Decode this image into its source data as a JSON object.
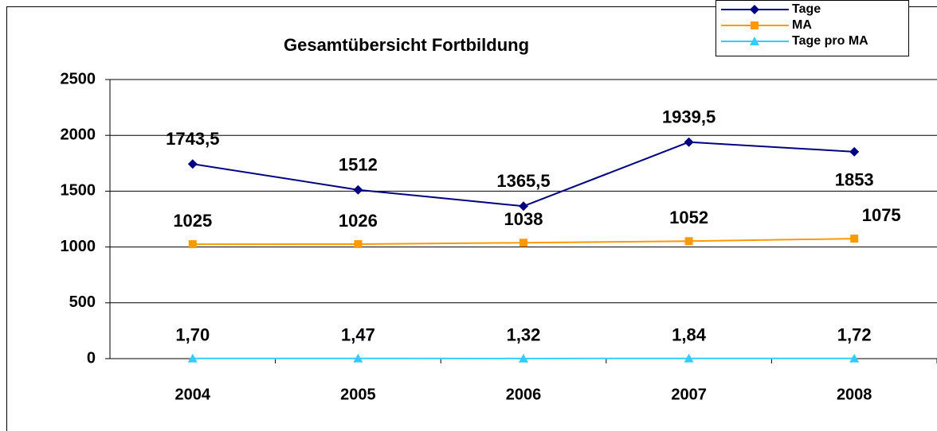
{
  "chart_data": {
    "type": "line",
    "title": "Gesamtübersicht Fortbildung",
    "categories": [
      "2004",
      "2005",
      "2006",
      "2007",
      "2008"
    ],
    "series": [
      {
        "name": "Tage",
        "color": "#000080",
        "marker": "diamond",
        "values": [
          1743.5,
          1512,
          1365.5,
          1939.5,
          1853
        ],
        "value_labels": [
          "1743,5",
          "1512",
          "1365,5",
          "1939,5",
          "1853"
        ]
      },
      {
        "name": "MA",
        "color": "#ff9900",
        "marker": "square",
        "values": [
          1025,
          1026,
          1038,
          1052,
          1075
        ]
      },
      {
        "name": "Tage pro MA",
        "color": "#33ccff",
        "marker": "triangle",
        "values": [
          1.7,
          1.47,
          1.32,
          1.84,
          1.72
        ],
        "value_labels": [
          "1,70",
          "1,47",
          "1,32",
          "1,84",
          "1,72"
        ]
      }
    ],
    "ylim": [
      0,
      2500
    ],
    "yticks": [
      0,
      500,
      1000,
      1500,
      2000,
      2500
    ],
    "grid": true,
    "legend": "top-right"
  }
}
